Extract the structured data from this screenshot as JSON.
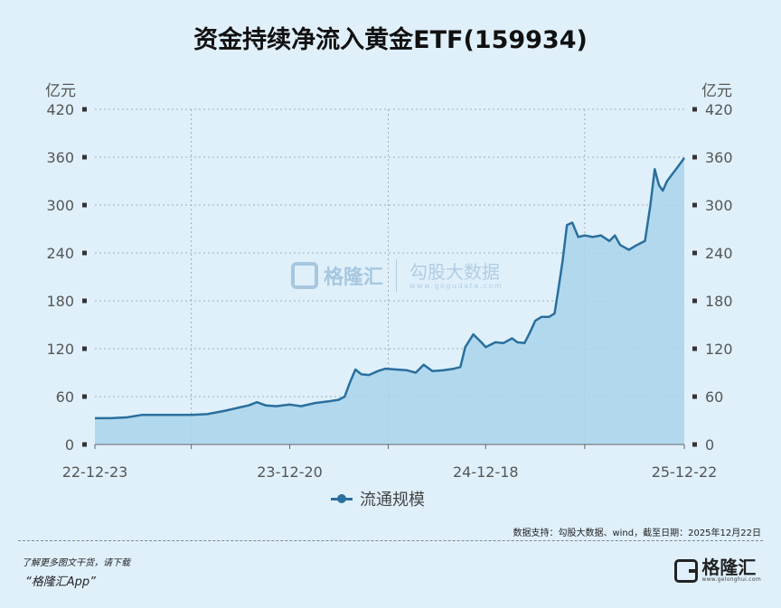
{
  "title": "资金持续净流入黄金ETF(159934)",
  "unit_left": "亿元",
  "unit_right": "亿元",
  "legend_label": "流通规模",
  "source_note": "数据支持：勾股大数据、wind，截至日期：2025年12月22日",
  "footer_line1": "了解更多图文干货，请下载",
  "footer_line2": "“格隆汇App”",
  "brand_logo_text": "格隆汇",
  "brand_logo_sub": "www.gelonghui.com",
  "watermark": {
    "brand": "格隆汇",
    "brand2": "勾股大数据",
    "url": "www.gogudata.com"
  },
  "colors": {
    "line": "#2a6f9e",
    "area": "#a9d3ea",
    "grid": "#9fb0bd",
    "background": "#dff0fb"
  },
  "chart_data": {
    "type": "area",
    "title": "资金持续净流入黄金ETF(159934)",
    "ylabel_left": "亿元",
    "ylabel_right": "亿元",
    "ylim": [
      0,
      420
    ],
    "yticks": [
      0,
      60,
      120,
      180,
      240,
      300,
      360,
      420
    ],
    "xlim": [
      "2022-12-23",
      "2025-12-22"
    ],
    "xtick_labels": [
      "22-12-23",
      "23-12-20",
      "24-12-18",
      "25-12-22"
    ],
    "grid": true,
    "legend_position": "bottom-center",
    "series": [
      {
        "name": "流通规模",
        "points": [
          [
            "2022-12-23",
            33
          ],
          [
            "2023-01-20",
            33
          ],
          [
            "2023-02-20",
            34
          ],
          [
            "2023-03-20",
            37
          ],
          [
            "2023-04-20",
            37
          ],
          [
            "2023-05-20",
            37
          ],
          [
            "2023-06-20",
            37
          ],
          [
            "2023-07-20",
            38
          ],
          [
            "2023-08-20",
            42
          ],
          [
            "2023-09-15",
            46
          ],
          [
            "2023-10-05",
            49
          ],
          [
            "2023-10-20",
            53
          ],
          [
            "2023-11-05",
            49
          ],
          [
            "2023-11-25",
            48
          ],
          [
            "2023-12-20",
            50
          ],
          [
            "2024-01-10",
            48
          ],
          [
            "2024-02-05",
            52
          ],
          [
            "2024-03-01",
            54
          ],
          [
            "2024-03-20",
            56
          ],
          [
            "2024-03-31",
            60
          ],
          [
            "2024-04-10",
            78
          ],
          [
            "2024-04-20",
            94
          ],
          [
            "2024-05-01",
            88
          ],
          [
            "2024-05-15",
            87
          ],
          [
            "2024-06-01",
            92
          ],
          [
            "2024-06-15",
            95
          ],
          [
            "2024-07-05",
            94
          ],
          [
            "2024-07-25",
            93
          ],
          [
            "2024-08-10",
            90
          ],
          [
            "2024-08-25",
            100
          ],
          [
            "2024-09-10",
            92
          ],
          [
            "2024-09-30",
            93
          ],
          [
            "2024-10-20",
            95
          ],
          [
            "2024-11-01",
            97
          ],
          [
            "2024-11-10",
            122
          ],
          [
            "2024-11-25",
            138
          ],
          [
            "2024-12-10",
            128
          ],
          [
            "2024-12-18",
            122
          ],
          [
            "2025-01-05",
            128
          ],
          [
            "2025-01-20",
            127
          ],
          [
            "2025-02-05",
            133
          ],
          [
            "2025-02-15",
            128
          ],
          [
            "2025-02-28",
            127
          ],
          [
            "2025-03-10",
            140
          ],
          [
            "2025-03-20",
            155
          ],
          [
            "2025-04-01",
            160
          ],
          [
            "2025-04-15",
            160
          ],
          [
            "2025-04-25",
            164
          ],
          [
            "2025-05-01",
            190
          ],
          [
            "2025-05-10",
            230
          ],
          [
            "2025-05-18",
            275
          ],
          [
            "2025-05-28",
            278
          ],
          [
            "2025-06-08",
            260
          ],
          [
            "2025-06-20",
            262
          ],
          [
            "2025-07-05",
            260
          ],
          [
            "2025-07-20",
            262
          ],
          [
            "2025-08-05",
            255
          ],
          [
            "2025-08-15",
            262
          ],
          [
            "2025-08-25",
            250
          ],
          [
            "2025-09-10",
            244
          ],
          [
            "2025-09-25",
            250
          ],
          [
            "2025-10-10",
            255
          ],
          [
            "2025-10-20",
            300
          ],
          [
            "2025-10-28",
            345
          ],
          [
            "2025-11-05",
            325
          ],
          [
            "2025-11-12",
            318
          ],
          [
            "2025-11-20",
            330
          ],
          [
            "2025-12-01",
            340
          ],
          [
            "2025-12-10",
            348
          ],
          [
            "2025-12-22",
            359
          ]
        ]
      }
    ]
  }
}
